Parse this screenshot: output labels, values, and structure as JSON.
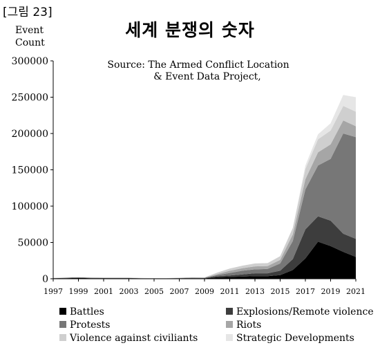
{
  "figure_label": "[그림 23]",
  "chart_data": {
    "type": "area",
    "title": "세계 분쟁의 숫자",
    "ylabel_lines": [
      "Event",
      "Count"
    ],
    "xlabel": "",
    "source_lines": [
      "Source: The Armed Conflict Location",
      "& Event Data Project,"
    ],
    "ylim": [
      0,
      300000
    ],
    "yticks": [
      0,
      50000,
      100000,
      150000,
      200000,
      250000,
      300000
    ],
    "x": [
      1997,
      1998,
      1999,
      2000,
      2001,
      2002,
      2003,
      2004,
      2005,
      2006,
      2007,
      2008,
      2009,
      2010,
      2011,
      2012,
      2013,
      2014,
      2015,
      2016,
      2017,
      2018,
      2019,
      2020,
      2021
    ],
    "xtick_labels": [
      "1997",
      "1999",
      "2001",
      "2003",
      "2005",
      "2007",
      "2009",
      "2011",
      "2013",
      "2015",
      "2017",
      "2019",
      "2021"
    ],
    "xtick_values": [
      1997,
      1999,
      2001,
      2003,
      2005,
      2007,
      2009,
      2011,
      2013,
      2015,
      2017,
      2019,
      2021
    ],
    "stacked": true,
    "grid": false,
    "legend_position": "bottom",
    "series": [
      {
        "name": "Battles",
        "color": "#000000",
        "values": [
          500,
          800,
          1200,
          800,
          700,
          700,
          700,
          400,
          300,
          300,
          500,
          700,
          600,
          2000,
          2500,
          3000,
          3500,
          3500,
          5000,
          12000,
          28000,
          51000,
          45000,
          37000,
          30000
        ]
      },
      {
        "name": "Explosions/Remote violence",
        "color": "#3d3d3d",
        "values": [
          200,
          300,
          400,
          300,
          300,
          300,
          300,
          200,
          200,
          200,
          300,
          400,
          400,
          1500,
          2000,
          3000,
          4000,
          4000,
          6000,
          15000,
          40000,
          35000,
          35000,
          25000,
          25000
        ]
      },
      {
        "name": "Protests",
        "color": "#777777",
        "values": [
          100,
          200,
          200,
          200,
          200,
          200,
          200,
          100,
          100,
          100,
          200,
          300,
          300,
          1500,
          3500,
          5000,
          5500,
          6000,
          10000,
          25000,
          55000,
          70000,
          85000,
          138000,
          140000
        ]
      },
      {
        "name": "Riots",
        "color": "#a6a6a6",
        "values": [
          100,
          200,
          200,
          200,
          100,
          100,
          100,
          100,
          100,
          100,
          100,
          200,
          200,
          1500,
          3000,
          3500,
          4000,
          4000,
          5000,
          9000,
          14000,
          18000,
          20000,
          18000,
          15000
        ]
      },
      {
        "name": "Violence against civiliants",
        "color": "#cfcfcf",
        "values": [
          200,
          300,
          400,
          300,
          300,
          300,
          300,
          200,
          200,
          200,
          300,
          400,
          400,
          2000,
          3000,
          3500,
          4000,
          4000,
          5000,
          9000,
          14000,
          18000,
          19000,
          20000,
          20000
        ]
      },
      {
        "name": "Strategic Developments",
        "color": "#e6e6e6",
        "values": [
          0,
          0,
          0,
          0,
          0,
          0,
          0,
          0,
          0,
          0,
          0,
          0,
          0,
          0,
          0,
          0,
          0,
          0,
          0,
          0,
          5000,
          7000,
          10000,
          15000,
          20000
        ]
      }
    ]
  }
}
